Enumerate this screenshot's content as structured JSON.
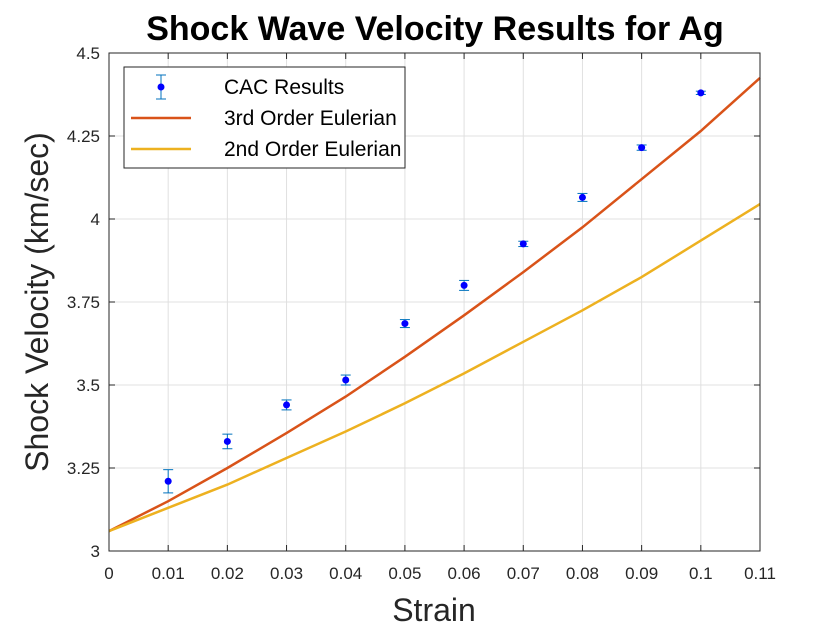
{
  "chart_data": {
    "type": "line",
    "title": "Shock Wave Velocity Results for Ag",
    "xlabel": "Strain",
    "ylabel": "Shock Velocity (km/sec)",
    "xlim": [
      0,
      0.11
    ],
    "ylim": [
      3,
      4.5
    ],
    "xticks": [
      0,
      0.01,
      0.02,
      0.03,
      0.04,
      0.05,
      0.06,
      0.07,
      0.08,
      0.09,
      0.1,
      0.11
    ],
    "xtick_labels": [
      "0",
      "0.01",
      "0.02",
      "0.03",
      "0.04",
      "0.05",
      "0.06",
      "0.07",
      "0.08",
      "0.09",
      "0.1",
      "0.11"
    ],
    "yticks": [
      3,
      3.25,
      3.5,
      3.75,
      4,
      4.25,
      4.5
    ],
    "ytick_labels": [
      "3",
      "3.25",
      "3.5",
      "3.75",
      "4",
      "4.25",
      "4.5"
    ],
    "grid": true,
    "legend_position": "top-left",
    "series": [
      {
        "name": "CAC Results",
        "kind": "errorbar",
        "color": "#0000ff",
        "errorbar_color": "#0072bd",
        "x": [
          0.01,
          0.02,
          0.03,
          0.04,
          0.05,
          0.06,
          0.07,
          0.08,
          0.09,
          0.1
        ],
        "y": [
          3.21,
          3.33,
          3.44,
          3.515,
          3.685,
          3.8,
          3.925,
          4.065,
          4.215,
          4.38
        ],
        "err": [
          0.035,
          0.022,
          0.015,
          0.015,
          0.012,
          0.015,
          0.008,
          0.012,
          0.008,
          0.005
        ]
      },
      {
        "name": "3rd Order Eulerian",
        "kind": "line",
        "color": "#d95319",
        "x": [
          0,
          0.01,
          0.02,
          0.03,
          0.04,
          0.05,
          0.06,
          0.07,
          0.08,
          0.09,
          0.1,
          0.11
        ],
        "y": [
          3.06,
          3.15,
          3.25,
          3.355,
          3.465,
          3.585,
          3.71,
          3.84,
          3.975,
          4.12,
          4.265,
          4.425
        ]
      },
      {
        "name": "2nd Order Eulerian",
        "kind": "line",
        "color": "#edb120",
        "x": [
          0,
          0.01,
          0.02,
          0.03,
          0.04,
          0.05,
          0.06,
          0.07,
          0.08,
          0.09,
          0.1,
          0.11
        ],
        "y": [
          3.06,
          3.13,
          3.2,
          3.28,
          3.36,
          3.445,
          3.535,
          3.63,
          3.725,
          3.825,
          3.935,
          4.045
        ]
      }
    ]
  }
}
